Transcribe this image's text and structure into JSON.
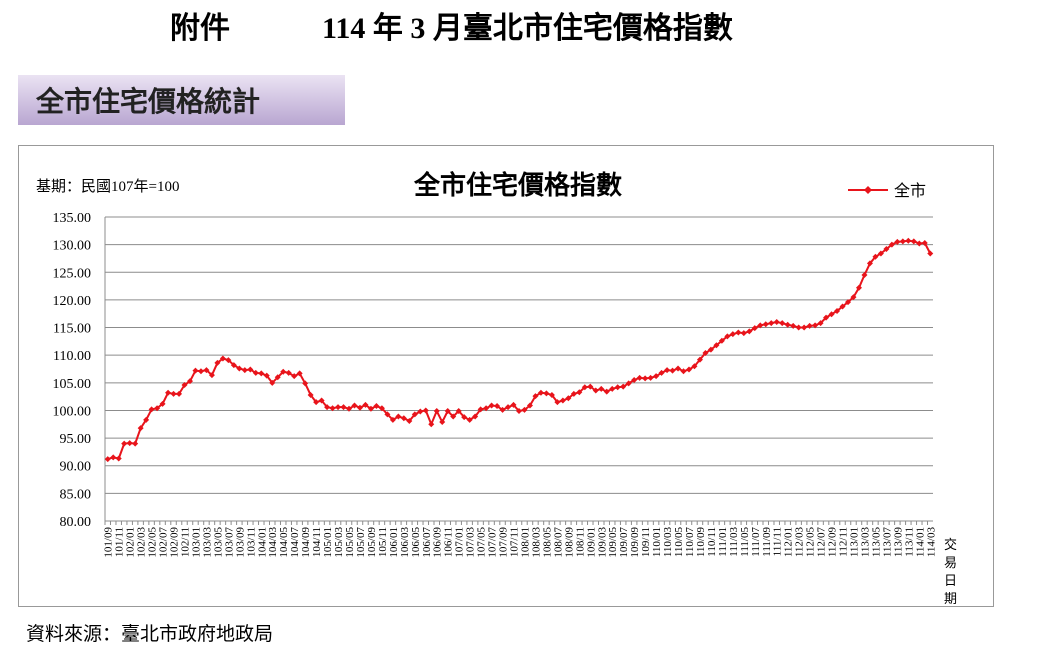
{
  "header": {
    "label": "附件",
    "title": "114 年 3 月臺北市住宅價格指數"
  },
  "section": "全市住宅價格統計",
  "chart_data": {
    "type": "line",
    "title": "全市住宅價格指數",
    "note": "基期：民國107年=100",
    "xlabel": "交易日期",
    "categories": [
      "101/09",
      null,
      "101/11",
      null,
      "102/01",
      null,
      "102/03",
      null,
      "102/05",
      null,
      "102/07",
      null,
      "102/09",
      null,
      "102/11",
      null,
      "103/01",
      null,
      "103/03",
      null,
      "103/05",
      null,
      "103/07",
      null,
      "103/09",
      null,
      "103/11",
      null,
      "104/01",
      null,
      "104/03",
      null,
      "104/05",
      null,
      "104/07",
      null,
      "104/09",
      null,
      "104/11",
      null,
      "105/01",
      null,
      "105/03",
      null,
      "105/05",
      null,
      "105/07",
      null,
      "105/09",
      null,
      "105/11",
      null,
      "106/01",
      null,
      "106/03",
      null,
      "106/05",
      null,
      "106/07",
      null,
      "106/09",
      null,
      "106/11",
      null,
      "107/01",
      null,
      "107/03",
      null,
      "107/05",
      null,
      "107/07",
      null,
      "107/09",
      null,
      "107/11",
      null,
      "108/01",
      null,
      "108/03",
      null,
      "108/05",
      null,
      "108/07",
      null,
      "108/09",
      null,
      "108/11",
      null,
      "109/01",
      null,
      "109/03",
      null,
      "109/05",
      null,
      "109/07",
      null,
      "109/09",
      null,
      "109/11",
      null,
      "110/01",
      null,
      "110/03",
      null,
      "110/05",
      null,
      "110/07",
      null,
      "110/09",
      null,
      "110/11",
      null,
      "111/01",
      null,
      "111/03",
      null,
      "111/05",
      null,
      "111/07",
      null,
      "111/09",
      null,
      "111/11",
      null,
      "112/01",
      null,
      "112/03",
      null,
      "112/05",
      null,
      "112/07",
      null,
      "112/09",
      null,
      "112/11",
      null,
      "113/01",
      null,
      "113/03",
      null,
      "113/05",
      null,
      "113/07",
      null,
      "113/09",
      null,
      "113/11",
      null,
      "114/01",
      null,
      "114/03"
    ],
    "series": [
      {
        "name": "全市",
        "color": "#e8141b",
        "values": [
          91.2,
          91.5,
          91.3,
          94.0,
          94.1,
          94.0,
          96.8,
          98.3,
          100.2,
          100.4,
          101.2,
          103.2,
          103.0,
          103.0,
          104.6,
          105.3,
          107.2,
          107.1,
          107.3,
          106.4,
          108.6,
          109.4,
          109.1,
          108.2,
          107.6,
          107.3,
          107.4,
          106.8,
          106.7,
          106.3,
          105.0,
          106.0,
          107.0,
          106.8,
          106.2,
          106.7,
          104.9,
          102.8,
          101.5,
          101.8,
          100.6,
          100.4,
          100.6,
          100.6,
          100.3,
          100.9,
          100.5,
          101.0,
          100.3,
          100.8,
          100.4,
          99.3,
          98.3,
          98.9,
          98.6,
          98.1,
          99.3,
          99.8,
          100.0,
          97.5,
          99.9,
          97.9,
          99.9,
          98.9,
          99.9,
          98.8,
          98.3,
          98.9,
          100.2,
          100.4,
          100.9,
          100.8,
          100.1,
          100.6,
          101.0,
          99.9,
          100.1,
          100.9,
          102.6,
          103.2,
          103.1,
          102.8,
          101.5,
          101.8,
          102.2,
          103.0,
          103.3,
          104.2,
          104.3,
          103.6,
          103.9,
          103.4,
          103.9,
          104.2,
          104.3,
          104.9,
          105.5,
          105.9,
          105.8,
          105.9,
          106.2,
          106.8,
          107.3,
          107.2,
          107.6,
          107.1,
          107.4,
          108.0,
          109.2,
          110.4,
          111.0,
          111.8,
          112.6,
          113.4,
          113.8,
          114.1,
          114.0,
          114.3,
          114.9,
          115.4,
          115.6,
          115.8,
          116.0,
          115.8,
          115.5,
          115.3,
          115.0,
          115.0,
          115.3,
          115.4,
          115.8,
          116.8,
          117.4,
          118.0,
          118.8,
          119.6,
          120.5,
          122.2,
          124.5,
          126.6,
          127.8,
          128.4,
          129.2,
          130.0,
          130.5,
          130.6,
          130.7,
          130.6,
          130.2,
          130.3,
          128.4
        ]
      }
    ],
    "ylim": [
      80,
      135
    ],
    "yticks": [
      {
        "value": 80,
        "label": "80.00"
      },
      {
        "value": 85,
        "label": "85.00"
      },
      {
        "value": 90,
        "label": "90.00"
      },
      {
        "value": 95,
        "label": "95.00"
      },
      {
        "value": 100,
        "label": "100.00"
      },
      {
        "value": 105,
        "label": "105.00"
      },
      {
        "value": 110,
        "label": "110.00"
      },
      {
        "value": 115,
        "label": "115.00"
      },
      {
        "value": 120,
        "label": "120.00"
      },
      {
        "value": 125,
        "label": "125.00"
      },
      {
        "value": 130,
        "label": "130.00"
      },
      {
        "value": 135,
        "label": "135.00"
      }
    ],
    "grid": true,
    "legend": "top-right"
  },
  "source": "資料來源：臺北市政府地政局"
}
